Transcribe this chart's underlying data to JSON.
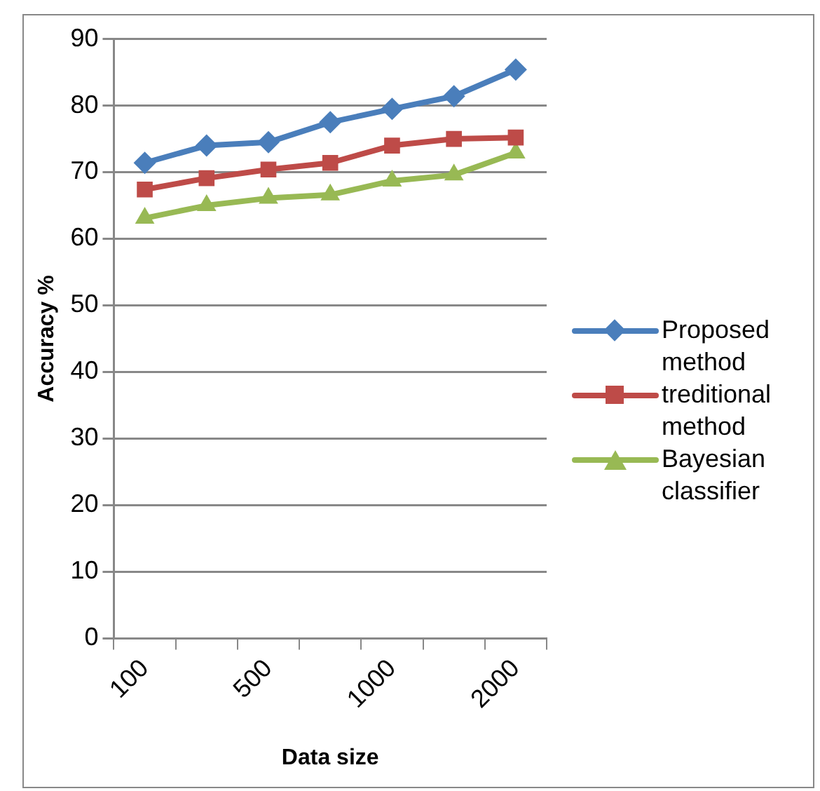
{
  "chart_data": {
    "type": "line",
    "xlabel": "Data size",
    "ylabel": "Accuracy %",
    "categories": [
      "100",
      null,
      "500",
      null,
      "1000",
      null,
      "2000"
    ],
    "series": [
      {
        "name": "Proposed method",
        "color": "#4a7ebb",
        "marker": "diamond",
        "values": [
          71.4,
          74.0,
          74.5,
          77.5,
          79.5,
          81.4,
          85.4
        ]
      },
      {
        "name": "treditional method",
        "color": "#be4b48",
        "marker": "square",
        "values": [
          67.4,
          69.1,
          70.4,
          71.4,
          74.0,
          75.0,
          75.2
        ]
      },
      {
        "name": "Bayesian classifier",
        "color": "#98b954",
        "marker": "triangle",
        "values": [
          63.1,
          65.0,
          66.1,
          66.6,
          68.7,
          69.6,
          72.9
        ]
      }
    ],
    "ylim": [
      0,
      90
    ],
    "yticks": [
      0,
      10,
      20,
      30,
      40,
      50,
      60,
      70,
      80,
      90
    ],
    "grid": "y",
    "legend": "right",
    "line_style": "solid"
  }
}
